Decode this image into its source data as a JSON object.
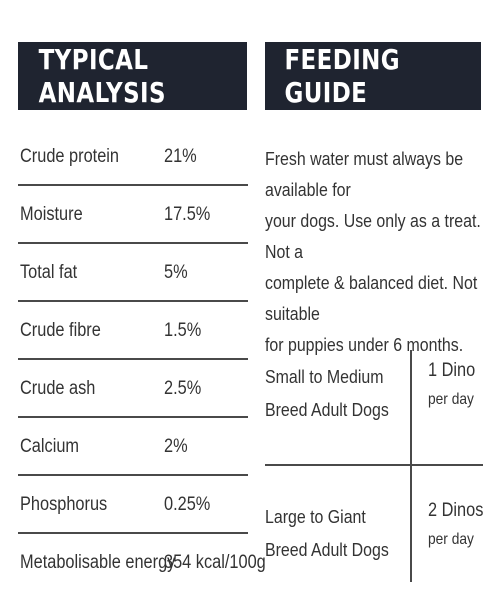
{
  "analysis": {
    "title": "TYPICAL ANALYSIS",
    "rows": [
      {
        "label": "Crude protein",
        "value": "21%"
      },
      {
        "label": "Moisture",
        "value": "17.5%"
      },
      {
        "label": "Total fat",
        "value": "5%"
      },
      {
        "label": "Crude fibre",
        "value": "1.5%"
      },
      {
        "label": "Crude ash",
        "value": "2.5%"
      },
      {
        "label": "Calcium",
        "value": "2%"
      },
      {
        "label": "Phosphorus",
        "value": "0.25%"
      },
      {
        "label": "Metabolisable energy",
        "value": "354 kcal/100g"
      }
    ]
  },
  "feeding": {
    "title": "FEEDING GUIDE",
    "lines": [
      "Fresh water must always be available for",
      "your dogs. Use only as a treat. Not a",
      "complete & balanced diet. Not suitable",
      "for puppies under 6 months."
    ],
    "table": [
      {
        "label_lines": [
          "Small to Medium",
          "Breed Adult Dogs"
        ],
        "amount": "1 Dino",
        "per": "per day"
      },
      {
        "label_lines": [
          "Large to Giant",
          "Breed Adult Dogs"
        ],
        "amount": "2 Dinos",
        "per": "per day"
      }
    ]
  },
  "colors": {
    "header_bg": "#1f2430",
    "header_text": "#ffffff",
    "text": "#333333",
    "rule": "#4a4a4a"
  }
}
